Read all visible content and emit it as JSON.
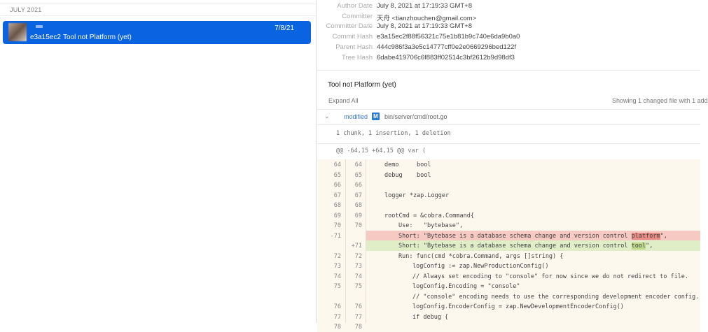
{
  "history": {
    "section": "JULY 2021",
    "commit": {
      "short_hash": "e3a15ec2",
      "message": "Tool not Platform (yet)",
      "date": "7/8/21"
    }
  },
  "details": {
    "meta": [
      {
        "label": "Author Date",
        "value": "July 8, 2021 at 17:19:33 GMT+8"
      },
      {
        "label": "Committer",
        "value": "天舟 <tianzhouchen@gmail.com>"
      },
      {
        "label": "Committer Date",
        "value": "July 8, 2021 at 17:19:33 GMT+8"
      },
      {
        "label": "Commit Hash",
        "value": "e3a15ec2f88f56321c75e1b81b9c740e6da9b0a0"
      },
      {
        "label": "Parent Hash",
        "value": "444c986f3a3e5c14777cff0e2e0669296bed122f"
      },
      {
        "label": "Tree Hash",
        "value": "6dabe419706c6f883ff02514c3bf2612b9d98df3"
      }
    ],
    "title": "Tool not Platform (yet)",
    "expand_all": "Expand All",
    "showing": "Showing 1 changed file with 1 add",
    "file": {
      "status": "modified",
      "badge": "M",
      "path": "bin/server/cmd/root.go",
      "summary": "1 chunk, 1 insertion, 1 deletion",
      "hunk": "@@ -64,15 +64,15 @@ var ("
    },
    "lines": [
      {
        "o": "64",
        "n": "64",
        "code": "demo     bool",
        "indent": 1
      },
      {
        "o": "65",
        "n": "65",
        "code": "debug    bool",
        "indent": 1
      },
      {
        "o": "66",
        "n": "66",
        "code": "",
        "indent": 1
      },
      {
        "o": "67",
        "n": "67",
        "code": "logger *zap.Logger",
        "indent": 1
      },
      {
        "o": "68",
        "n": "68",
        "code": "",
        "indent": 1
      },
      {
        "o": "69",
        "n": "69",
        "code": "rootCmd = &cobra.Command{",
        "indent": 1
      },
      {
        "o": "70",
        "n": "70",
        "code": "Use:   \"bytebase\",",
        "indent": 2
      },
      {
        "o": "-71",
        "n": "",
        "code": "Short: \"Bytebase is a database schema change and version control ",
        "hl": "platform",
        "tail": "\",",
        "indent": 2,
        "type": "del"
      },
      {
        "o": "",
        "n": "+71",
        "code": "Short: \"Bytebase is a database schema change and version control ",
        "hl": "tool",
        "tail": "\",",
        "indent": 2,
        "type": "add"
      },
      {
        "o": "72",
        "n": "72",
        "code": "Run: func(cmd *cobra.Command, args []string) {",
        "indent": 2
      },
      {
        "o": "73",
        "n": "73",
        "code": "logConfig := zap.NewProductionConfig()",
        "indent": 3
      },
      {
        "o": "74",
        "n": "74",
        "code": "// Always set encoding to \"console\" for now since we do not redirect to file.",
        "indent": 3
      },
      {
        "o": "75",
        "n": "75",
        "code": "logConfig.Encoding = \"console\"",
        "indent": 3
      },
      {
        "o": "",
        "n": "",
        "code": "// \"console\" encoding needs to use the corresponding development encoder config.",
        "indent": 3
      },
      {
        "o": "76",
        "n": "76",
        "code": "logConfig.EncoderConfig = zap.NewDevelopmentEncoderConfig()",
        "indent": 3
      },
      {
        "o": "77",
        "n": "77",
        "code": "if debug {",
        "indent": 3
      },
      {
        "o": "78",
        "n": "78",
        "code": "",
        "indent": 3
      }
    ]
  },
  "colors": {
    "selection": "#0a63e0",
    "deleted": "#f6c9c2",
    "added": "#e0eec8",
    "link": "#3a7bd5"
  }
}
